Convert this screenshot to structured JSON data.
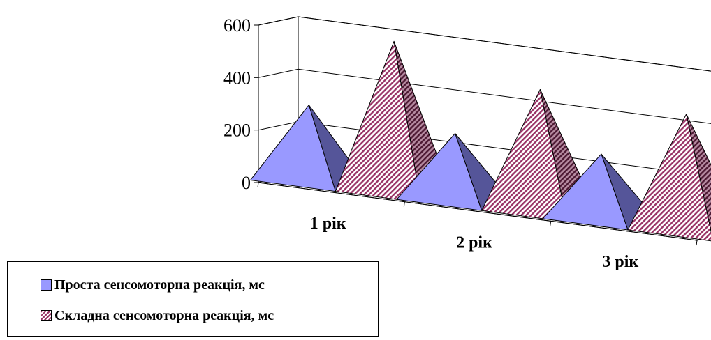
{
  "chart_data": {
    "type": "bar",
    "style": "3d-pyramid",
    "categories": [
      "1 рік",
      "2 рік",
      "3 рік"
    ],
    "series": [
      {
        "name": "Проста сенсомоторна реакція, мс",
        "values": [
          295,
          260,
          255
        ],
        "color": "#9999ff",
        "fill": "solid"
      },
      {
        "name": "Складна сенсомоторна реакція, мс",
        "values": [
          580,
          470,
          450
        ],
        "color": "#993366",
        "fill": "diagonal-hatch"
      }
    ],
    "y_ticks": [
      "0",
      "200",
      "400",
      "600"
    ],
    "ylim": [
      0,
      600
    ],
    "grid": true,
    "legend_position": "bottom-left"
  }
}
